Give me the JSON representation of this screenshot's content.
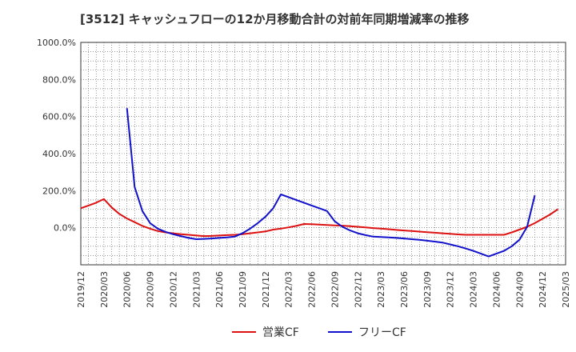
{
  "chart_data": {
    "type": "line",
    "title": "[3512]  キャッシュフローの12か月移動合計の対前年同期増減率の推移",
    "xlabel": "",
    "ylabel": "",
    "ylim": [
      -200,
      1000
    ],
    "y_ticks": [
      0,
      200,
      400,
      600,
      800,
      1000
    ],
    "y_tick_labels": [
      "0.0%",
      "200.0%",
      "400.0%",
      "600.0%",
      "800.0%",
      "1000.0%"
    ],
    "x_ticks": [
      "2019/12",
      "2020/03",
      "2020/06",
      "2020/09",
      "2020/12",
      "2021/03",
      "2021/06",
      "2021/09",
      "2021/12",
      "2022/03",
      "2022/06",
      "2022/09",
      "2022/12",
      "2023/03",
      "2023/06",
      "2023/09",
      "2023/12",
      "2024/03",
      "2024/06",
      "2024/09",
      "2024/12",
      "2025/03"
    ],
    "grid": true,
    "legend_position": "bottom",
    "series": [
      {
        "name": "営業CF",
        "color": "#dd1111",
        "points": [
          [
            0,
            105
          ],
          [
            1,
            120
          ],
          [
            2,
            135
          ],
          [
            3,
            155
          ],
          [
            4,
            110
          ],
          [
            5,
            75
          ],
          [
            6,
            50
          ],
          [
            7,
            30
          ],
          [
            8,
            10
          ],
          [
            9,
            -5
          ],
          [
            10,
            -18
          ],
          [
            11,
            -25
          ],
          [
            12,
            -30
          ],
          [
            13,
            -35
          ],
          [
            14,
            -38
          ],
          [
            15,
            -42
          ],
          [
            16,
            -45
          ],
          [
            17,
            -44
          ],
          [
            18,
            -42
          ],
          [
            19,
            -40
          ],
          [
            20,
            -38
          ],
          [
            21,
            -35
          ],
          [
            22,
            -30
          ],
          [
            23,
            -25
          ],
          [
            24,
            -20
          ],
          [
            25,
            -10
          ],
          [
            26,
            -5
          ],
          [
            27,
            2
          ],
          [
            28,
            10
          ],
          [
            29,
            20
          ],
          [
            30,
            19
          ],
          [
            31,
            17
          ],
          [
            32,
            15
          ],
          [
            33,
            13
          ],
          [
            34,
            11
          ],
          [
            35,
            8
          ],
          [
            36,
            5
          ],
          [
            37,
            2
          ],
          [
            38,
            -2
          ],
          [
            39,
            -5
          ],
          [
            40,
            -8
          ],
          [
            41,
            -12
          ],
          [
            42,
            -15
          ],
          [
            43,
            -18
          ],
          [
            44,
            -21
          ],
          [
            45,
            -24
          ],
          [
            46,
            -27
          ],
          [
            47,
            -30
          ],
          [
            48,
            -33
          ],
          [
            49,
            -36
          ],
          [
            50,
            -38
          ],
          [
            51,
            -38
          ],
          [
            52,
            -38
          ],
          [
            53,
            -38
          ],
          [
            54,
            -38
          ],
          [
            55,
            -38
          ],
          [
            56,
            -25
          ],
          [
            57,
            -10
          ],
          [
            58,
            5
          ],
          [
            59,
            25
          ],
          [
            60,
            48
          ],
          [
            61,
            72
          ],
          [
            62,
            100
          ]
        ]
      },
      {
        "name": "フリーCF",
        "color": "#1111cc",
        "points": [
          [
            6,
            645
          ],
          [
            7,
            220
          ],
          [
            8,
            90
          ],
          [
            9,
            25
          ],
          [
            10,
            -5
          ],
          [
            11,
            -22
          ],
          [
            12,
            -35
          ],
          [
            13,
            -45
          ],
          [
            14,
            -55
          ],
          [
            15,
            -62
          ],
          [
            16,
            -60
          ],
          [
            17,
            -58
          ],
          [
            18,
            -55
          ],
          [
            19,
            -52
          ],
          [
            20,
            -48
          ],
          [
            21,
            -30
          ],
          [
            22,
            -5
          ],
          [
            23,
            25
          ],
          [
            24,
            60
          ],
          [
            25,
            105
          ],
          [
            26,
            180
          ],
          [
            27,
            165
          ],
          [
            28,
            150
          ],
          [
            29,
            135
          ],
          [
            30,
            120
          ],
          [
            31,
            105
          ],
          [
            32,
            90
          ],
          [
            33,
            35
          ],
          [
            34,
            5
          ],
          [
            35,
            -15
          ],
          [
            36,
            -30
          ],
          [
            37,
            -40
          ],
          [
            38,
            -48
          ],
          [
            39,
            -50
          ],
          [
            40,
            -52
          ],
          [
            41,
            -55
          ],
          [
            42,
            -58
          ],
          [
            43,
            -62
          ],
          [
            44,
            -65
          ],
          [
            45,
            -70
          ],
          [
            46,
            -75
          ],
          [
            47,
            -80
          ],
          [
            48,
            -90
          ],
          [
            49,
            -100
          ],
          [
            50,
            -112
          ],
          [
            51,
            -125
          ],
          [
            52,
            -140
          ],
          [
            53,
            -155
          ],
          [
            54,
            -140
          ],
          [
            55,
            -125
          ],
          [
            56,
            -100
          ],
          [
            57,
            -65
          ],
          [
            58,
            5
          ],
          [
            59,
            175
          ]
        ]
      }
    ]
  }
}
